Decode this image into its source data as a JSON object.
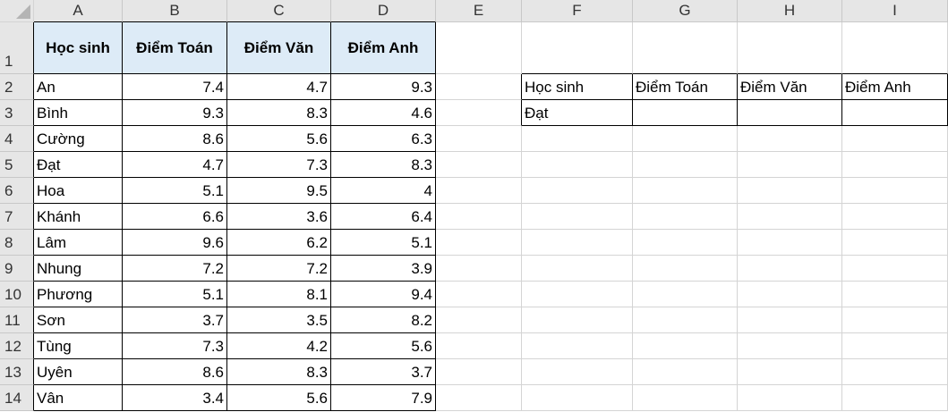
{
  "columns": [
    "A",
    "B",
    "C",
    "D",
    "E",
    "F",
    "G",
    "H",
    "I"
  ],
  "rows": [
    {
      "num": "1",
      "cells": [
        "Học sinh",
        "Điểm Toán",
        "Điểm Văn",
        "Điểm Anh",
        "",
        "",
        "",
        "",
        ""
      ]
    },
    {
      "num": "2",
      "cells": [
        "An",
        "7.4",
        "4.7",
        "9.3",
        "",
        "Học sinh",
        "Điểm Toán",
        "Điểm Văn",
        "Điểm Anh"
      ]
    },
    {
      "num": "3",
      "cells": [
        "Bình",
        "9.3",
        "8.3",
        "4.6",
        "",
        "Đạt",
        "",
        "",
        ""
      ]
    },
    {
      "num": "4",
      "cells": [
        "Cường",
        "8.6",
        "5.6",
        "6.3",
        "",
        "",
        "",
        "",
        ""
      ]
    },
    {
      "num": "5",
      "cells": [
        "Đạt",
        "4.7",
        "7.3",
        "8.3",
        "",
        "",
        "",
        "",
        ""
      ]
    },
    {
      "num": "6",
      "cells": [
        "Hoa",
        "5.1",
        "9.5",
        "4",
        "",
        "",
        "",
        "",
        ""
      ]
    },
    {
      "num": "7",
      "cells": [
        "Khánh",
        "6.6",
        "3.6",
        "6.4",
        "",
        "",
        "",
        "",
        ""
      ]
    },
    {
      "num": "8",
      "cells": [
        "Lâm",
        "9.6",
        "6.2",
        "5.1",
        "",
        "",
        "",
        "",
        ""
      ]
    },
    {
      "num": "9",
      "cells": [
        "Nhung",
        "7.2",
        "7.2",
        "3.9",
        "",
        "",
        "",
        "",
        ""
      ]
    },
    {
      "num": "10",
      "cells": [
        "Phương",
        "5.1",
        "8.1",
        "9.4",
        "",
        "",
        "",
        "",
        ""
      ]
    },
    {
      "num": "11",
      "cells": [
        "Sơn",
        "3.7",
        "3.5",
        "8.2",
        "",
        "",
        "",
        "",
        ""
      ]
    },
    {
      "num": "12",
      "cells": [
        "Tùng",
        "7.3",
        "4.2",
        "5.6",
        "",
        "",
        "",
        "",
        ""
      ]
    },
    {
      "num": "13",
      "cells": [
        "Uyên",
        "8.6",
        "8.3",
        "3.7",
        "",
        "",
        "",
        "",
        ""
      ]
    },
    {
      "num": "14",
      "cells": [
        "Vân",
        "3.4",
        "5.6",
        "7.9",
        "",
        "",
        "",
        "",
        ""
      ]
    }
  ],
  "colors": {
    "header_fill": "#ddebf7",
    "gridline": "#d4d4d4",
    "border": "#000000"
  }
}
